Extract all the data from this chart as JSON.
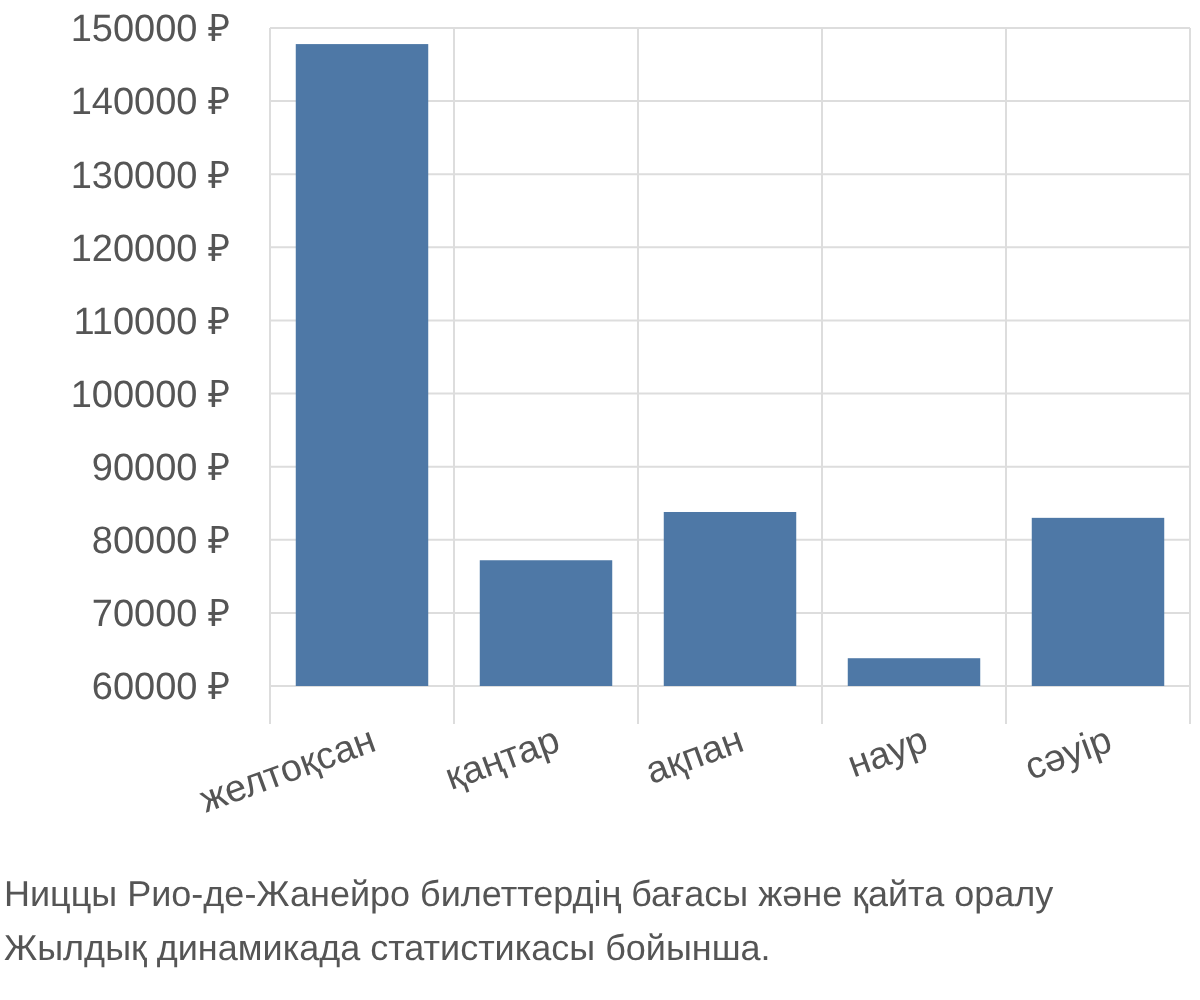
{
  "chart_data": {
    "type": "bar",
    "categories": [
      "желтоқсан",
      "қаңтар",
      "ақпан",
      "наур",
      "сәуір"
    ],
    "values": [
      147800,
      77200,
      83800,
      63800,
      83000
    ],
    "color": "#4e78a6",
    "ylim": [
      60000,
      150000
    ],
    "yticks": [
      {
        "value": 60000,
        "label": "60000 ₽"
      },
      {
        "value": 70000,
        "label": "70000 ₽"
      },
      {
        "value": 80000,
        "label": "80000 ₽"
      },
      {
        "value": 90000,
        "label": "90000 ₽"
      },
      {
        "value": 100000,
        "label": "100000 ₽"
      },
      {
        "value": 110000,
        "label": "110000 ₽"
      },
      {
        "value": 120000,
        "label": "120000 ₽"
      },
      {
        "value": 130000,
        "label": "130000 ₽"
      },
      {
        "value": 140000,
        "label": "140000 ₽"
      },
      {
        "value": 150000,
        "label": "150000 ₽"
      }
    ],
    "grid": true,
    "annotations": [
      "Ниццы Рио-де-Жанейро билеттердің бағасы және қайта оралу",
      "Жылдық динамикада статистикасы бойынша."
    ]
  }
}
